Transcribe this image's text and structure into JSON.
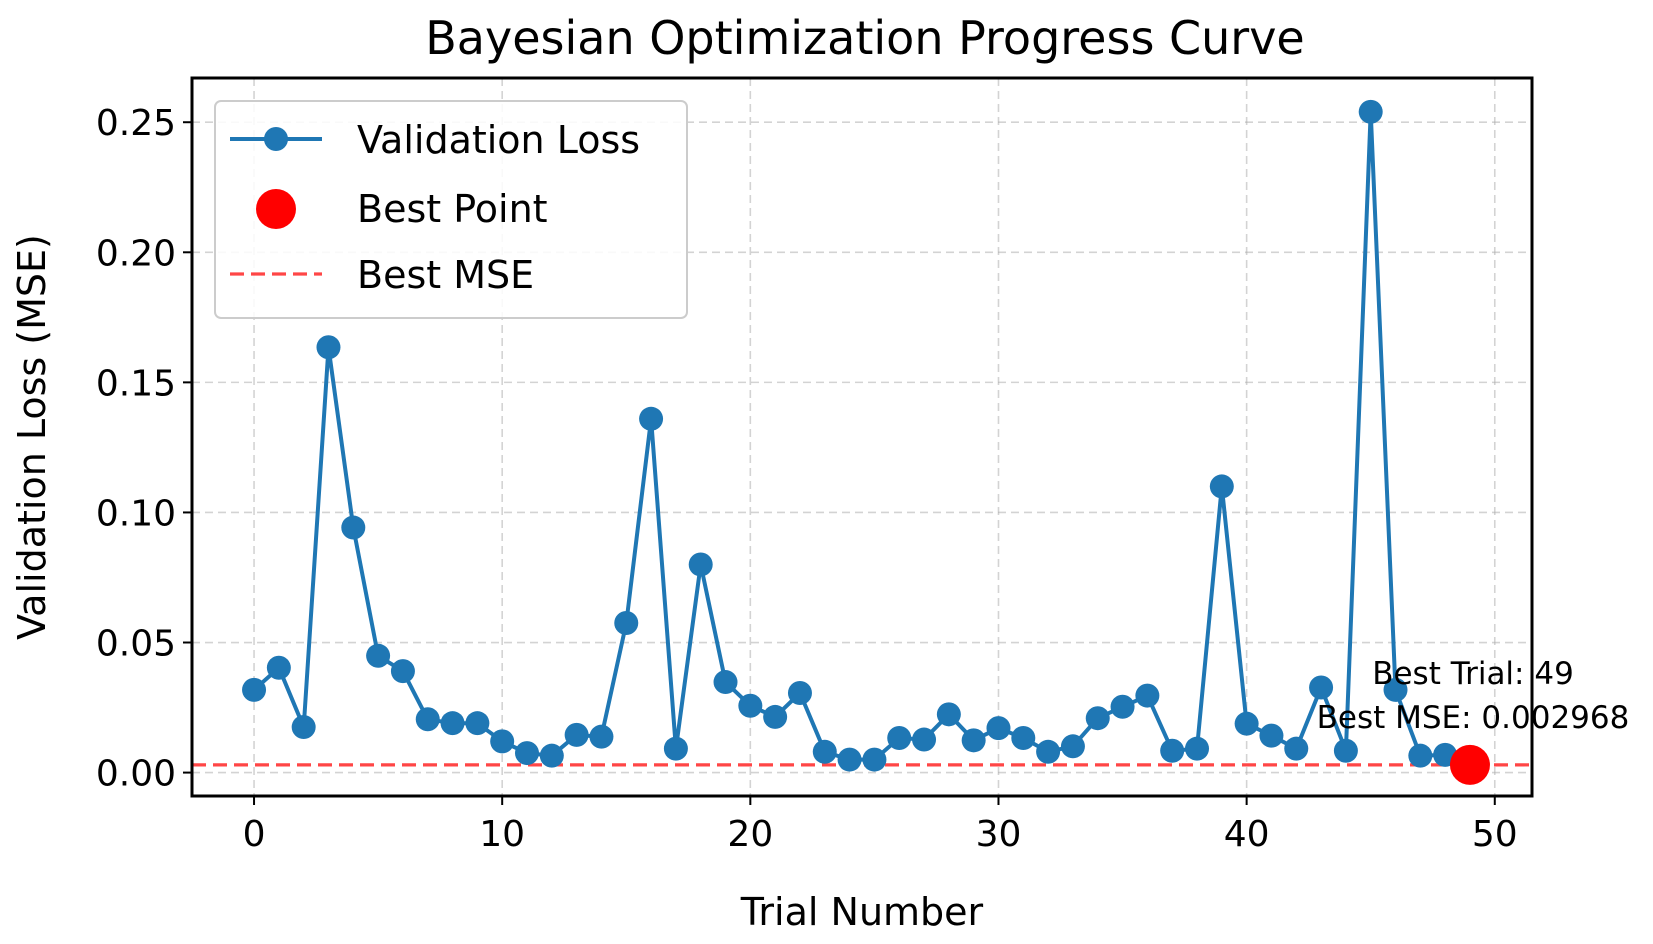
{
  "chart_data": {
    "type": "line",
    "title": "Bayesian Optimization Progress Curve",
    "xlabel": "Trial Number",
    "ylabel": "Validation Loss (MSE)",
    "xlim": [
      -2.5,
      51.5
    ],
    "ylim": [
      -0.009,
      0.267
    ],
    "xticks": [
      0,
      10,
      20,
      30,
      40,
      50
    ],
    "xtick_labels": [
      "0",
      "10",
      "20",
      "30",
      "40",
      "50"
    ],
    "yticks": [
      0.0,
      0.05,
      0.1,
      0.15,
      0.2,
      0.25
    ],
    "ytick_labels": [
      "0.00",
      "0.05",
      "0.10",
      "0.15",
      "0.20",
      "0.25"
    ],
    "grid": true,
    "legend": {
      "position": "upper-left",
      "entries": [
        "Validation Loss",
        "Best Point",
        "Best MSE"
      ]
    },
    "series": [
      {
        "name": "Validation Loss",
        "color": "#1f77b4",
        "x": [
          0,
          1,
          2,
          3,
          4,
          5,
          6,
          7,
          8,
          9,
          10,
          11,
          12,
          13,
          14,
          15,
          16,
          17,
          18,
          19,
          20,
          21,
          22,
          23,
          24,
          25,
          26,
          27,
          28,
          29,
          30,
          31,
          32,
          33,
          34,
          35,
          36,
          37,
          38,
          39,
          40,
          41,
          42,
          43,
          44,
          45,
          46,
          47,
          48,
          49
        ],
        "values": [
          0.0318,
          0.0403,
          0.0175,
          0.1635,
          0.0942,
          0.0449,
          0.039,
          0.0205,
          0.019,
          0.019,
          0.012,
          0.0075,
          0.0065,
          0.0145,
          0.0138,
          0.0575,
          0.136,
          0.0092,
          0.08,
          0.0348,
          0.0257,
          0.0214,
          0.0306,
          0.008,
          0.005,
          0.005,
          0.0133,
          0.0127,
          0.0224,
          0.0124,
          0.0171,
          0.0133,
          0.008,
          0.0101,
          0.0209,
          0.0253,
          0.0296,
          0.0084,
          0.0092,
          0.11,
          0.0188,
          0.0142,
          0.0092,
          0.0327,
          0.0084,
          0.254,
          0.0318,
          0.0065,
          0.0068,
          0.002968
        ]
      }
    ],
    "best_point": {
      "name": "Best Point",
      "x": 49,
      "y": 0.002968,
      "color": "#ff0000"
    },
    "best_line": {
      "name": "Best MSE",
      "y": 0.002968,
      "color": "#ff0000"
    },
    "annotations": [
      "Best Trial: 49",
      "Best MSE: 0.002968"
    ]
  }
}
